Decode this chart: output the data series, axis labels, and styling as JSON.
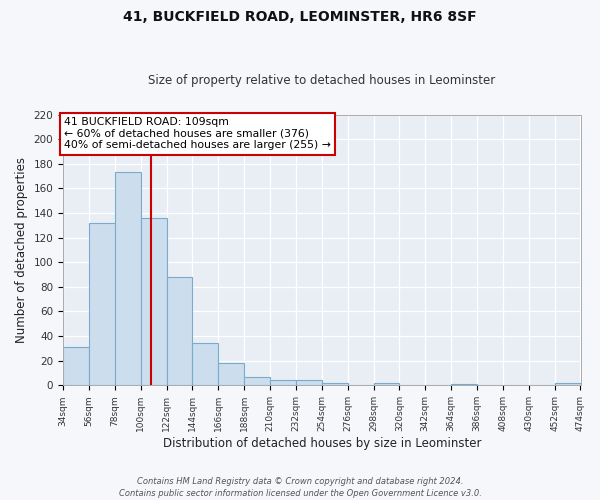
{
  "title": "41, BUCKFIELD ROAD, LEOMINSTER, HR6 8SF",
  "subtitle": "Size of property relative to detached houses in Leominster",
  "xlabel": "Distribution of detached houses by size in Leominster",
  "ylabel": "Number of detached properties",
  "bin_edges": [
    34,
    56,
    78,
    100,
    122,
    144,
    166,
    188,
    210,
    232,
    254,
    276,
    298,
    320,
    342,
    364,
    386,
    408,
    430,
    452,
    474
  ],
  "bin_heights": [
    31,
    132,
    173,
    136,
    88,
    34,
    18,
    7,
    4,
    4,
    2,
    0,
    2,
    0,
    0,
    1,
    0,
    0,
    0,
    2
  ],
  "bar_color": "#ccdded",
  "bar_edge_color": "#7aabcc",
  "vline_x": 109,
  "vline_color": "#cc0000",
  "annotation_text": "41 BUCKFIELD ROAD: 109sqm\n← 60% of detached houses are smaller (376)\n40% of semi-detached houses are larger (255) →",
  "annotation_box_color": "#ffffff",
  "annotation_box_edge": "#cc0000",
  "ylim": [
    0,
    220
  ],
  "yticks": [
    0,
    20,
    40,
    60,
    80,
    100,
    120,
    140,
    160,
    180,
    200,
    220
  ],
  "tick_labels": [
    "34sqm",
    "56sqm",
    "78sqm",
    "100sqm",
    "122sqm",
    "144sqm",
    "166sqm",
    "188sqm",
    "210sqm",
    "232sqm",
    "254sqm",
    "276sqm",
    "298sqm",
    "320sqm",
    "342sqm",
    "364sqm",
    "386sqm",
    "408sqm",
    "430sqm",
    "452sqm",
    "474sqm"
  ],
  "footer_text": "Contains HM Land Registry data © Crown copyright and database right 2024.\nContains public sector information licensed under the Open Government Licence v3.0.",
  "plot_bg_color": "#e8eef4",
  "fig_bg_color": "#f5f7fa",
  "grid_color": "#ffffff"
}
